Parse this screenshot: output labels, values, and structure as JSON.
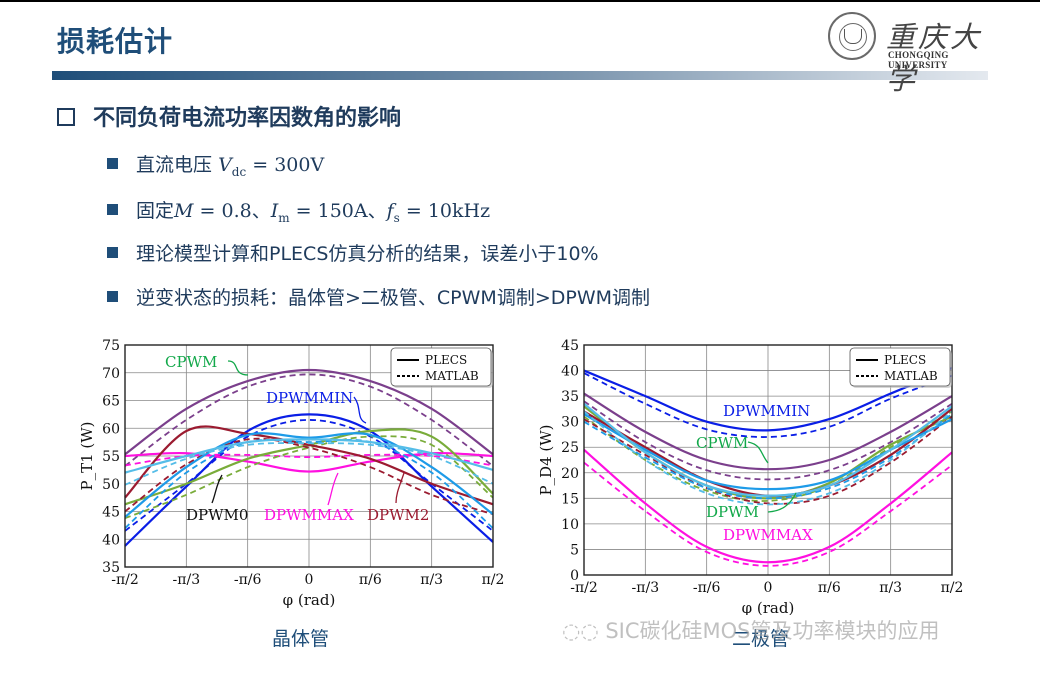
{
  "slide": {
    "title": "损耗估计",
    "logo": {
      "cn": "重庆大学",
      "en": "CHONGQING UNIVERSITY"
    },
    "heading": "不同负荷电流功率因数角的影响",
    "bullets": [
      {
        "prefix": "直流电压",
        "math": "V_dc = 300V"
      },
      {
        "prefix": "固定",
        "math": "M = 0.8、I_m = 150A、f_s = 10kHz"
      },
      {
        "prefix": "",
        "math": "理论模型计算和PLECS仿真分析的结果，误差小于10%"
      },
      {
        "prefix": "",
        "math": "逆变状态的损耗：晶体管>二极管、CPWM调制>DPWM调制"
      }
    ],
    "captions": {
      "left": "晶体管",
      "right": "二极管"
    },
    "watermark": "SIC碳化硅MOS管及功率模块的应用"
  },
  "colors": {
    "title": "#1f4e79",
    "cpwm": "#7b3f8c",
    "dpwmmin": "#0a1ee6",
    "dpwmmax": "#ff10e0",
    "dpwm0": "#79ac3a",
    "dpwm2": "#9b1b30",
    "dpwm1": "#1e9be8",
    "dpwm3": "#55bde8",
    "annot_green": "#12a84a"
  },
  "chart_data": [
    {
      "type": "line",
      "title": "晶体管",
      "xlabel": "φ (rad)",
      "ylabel": "P_T1 (W)",
      "x_ticks": [
        "-π/2",
        "-π/3",
        "-π/6",
        "0",
        "π/6",
        "π/3",
        "π/2"
      ],
      "y_ticks": [
        35,
        40,
        45,
        50,
        55,
        60,
        65,
        70,
        75
      ],
      "ylim": [
        35,
        75
      ],
      "grid": true,
      "legend": [
        "PLECS",
        "MATLAB"
      ],
      "legend_position": "upper right",
      "annotations": [
        "CPWM",
        "DPWMMIN",
        "DPWM0",
        "DPWMMAX",
        "DPWM2"
      ],
      "x": [
        -1.5708,
        -1.0472,
        -0.5236,
        0,
        0.5236,
        1.0472,
        1.5708
      ],
      "series": [
        {
          "name": "CPWM PLECS",
          "style": "solid",
          "values": [
            55.3,
            63.5,
            68.5,
            70.5,
            68.5,
            63.5,
            55.3
          ]
        },
        {
          "name": "CPWM MATLAB",
          "style": "dashed",
          "values": [
            53.2,
            61.5,
            67.5,
            69.7,
            67.5,
            61.5,
            53.2
          ]
        },
        {
          "name": "DPWMMIN PLECS",
          "style": "solid",
          "values": [
            38.8,
            49.5,
            59.5,
            62.5,
            59.5,
            49.5,
            39.5
          ]
        },
        {
          "name": "DPWMMIN MATLAB",
          "style": "dashed",
          "values": [
            41.5,
            50.0,
            58.5,
            61.5,
            58.5,
            50.0,
            41.5
          ]
        },
        {
          "name": "DPWMMAX PLECS",
          "style": "solid",
          "values": [
            55.0,
            55.5,
            54.0,
            52.2,
            54.0,
            55.5,
            55.0
          ]
        },
        {
          "name": "DPWMMAX MATLAB",
          "style": "dashed",
          "values": [
            53.3,
            55.0,
            55.2,
            54.8,
            55.2,
            55.0,
            53.3
          ]
        },
        {
          "name": "DPWM0 PLECS",
          "style": "solid",
          "values": [
            46.3,
            50.0,
            54.5,
            57.0,
            59.5,
            58.5,
            48.2
          ]
        },
        {
          "name": "DPWM0 MATLAB",
          "style": "dashed",
          "values": [
            43.8,
            48.0,
            53.0,
            56.5,
            58.5,
            57.0,
            47.5
          ]
        },
        {
          "name": "DPWM2 PLECS",
          "style": "solid",
          "values": [
            47.5,
            59.5,
            59.0,
            57.0,
            54.5,
            50.0,
            46.3
          ]
        },
        {
          "name": "DPWM2 MATLAB",
          "style": "dashed",
          "values": [
            45.0,
            53.5,
            58.0,
            56.5,
            53.0,
            48.0,
            44.5
          ]
        },
        {
          "name": "DPWM1 PLECS",
          "style": "solid",
          "values": [
            44.0,
            53.0,
            58.8,
            58.3,
            58.8,
            53.0,
            44.5
          ]
        },
        {
          "name": "DPWM1 MATLAB",
          "style": "dashed",
          "values": [
            42.0,
            52.0,
            57.5,
            57.5,
            57.5,
            52.0,
            42.0
          ]
        },
        {
          "name": "DPWM3 PLECS",
          "style": "solid",
          "values": [
            52.0,
            55.0,
            57.5,
            58.0,
            57.5,
            55.5,
            52.5
          ]
        },
        {
          "name": "DPWM3 MATLAB",
          "style": "dashed",
          "values": [
            49.8,
            54.5,
            57.0,
            57.3,
            57.0,
            55.0,
            50.0
          ]
        }
      ]
    },
    {
      "type": "line",
      "title": "二极管",
      "xlabel": "φ (rad)",
      "ylabel": "P_D4 (W)",
      "x_ticks": [
        "-π/2",
        "-π/3",
        "-π/6",
        "0",
        "π/6",
        "π/3",
        "π/2"
      ],
      "y_ticks": [
        0,
        5,
        10,
        15,
        20,
        25,
        30,
        35,
        40,
        45
      ],
      "ylim": [
        0,
        45
      ],
      "grid": true,
      "legend": [
        "PLECS",
        "MATLAB"
      ],
      "legend_position": "upper right",
      "annotations": [
        "DPWMMIN",
        "CPWM",
        "DPWM",
        "DPWMMAX"
      ],
      "x": [
        -1.5708,
        -1.0472,
        -0.5236,
        0,
        0.5236,
        1.0472,
        1.5708
      ],
      "series": [
        {
          "name": "DPWMMIN PLECS",
          "style": "solid",
          "values": [
            40.0,
            35.0,
            30.0,
            28.3,
            30.5,
            35.5,
            40.5
          ]
        },
        {
          "name": "DPWMMIN MATLAB",
          "style": "dashed",
          "values": [
            39.5,
            33.5,
            28.5,
            27.0,
            29.0,
            34.5,
            39.0
          ]
        },
        {
          "name": "CPWM PLECS",
          "style": "solid",
          "values": [
            35.5,
            28.0,
            22.5,
            20.7,
            22.5,
            28.0,
            35.0
          ]
        },
        {
          "name": "CPWM MATLAB",
          "style": "dashed",
          "values": [
            34.0,
            26.0,
            20.5,
            18.7,
            20.5,
            26.0,
            33.5
          ]
        },
        {
          "name": "DPWMMAX PLECS",
          "style": "solid",
          "values": [
            24.5,
            14.0,
            5.5,
            2.5,
            5.5,
            14.0,
            24.0
          ]
        },
        {
          "name": "DPWMMAX MATLAB",
          "style": "dashed",
          "values": [
            22.0,
            12.5,
            4.5,
            1.8,
            4.5,
            12.5,
            21.5
          ]
        },
        {
          "name": "DPWM0 PLECS",
          "style": "solid",
          "values": [
            33.0,
            24.0,
            17.5,
            15.0,
            18.0,
            25.5,
            31.0
          ]
        },
        {
          "name": "DPWM0 MATLAB",
          "style": "dashed",
          "values": [
            31.0,
            22.5,
            16.5,
            14.5,
            17.5,
            25.0,
            32.0
          ]
        },
        {
          "name": "DPWM2 PLECS",
          "style": "solid",
          "values": [
            32.0,
            25.0,
            18.5,
            15.5,
            17.5,
            23.5,
            32.5
          ]
        },
        {
          "name": "DPWM2 MATLAB",
          "style": "dashed",
          "values": [
            30.5,
            23.5,
            17.0,
            14.0,
            15.5,
            22.0,
            31.0
          ]
        },
        {
          "name": "DPWM1 PLECS",
          "style": "solid",
          "values": [
            31.5,
            24.5,
            18.5,
            16.8,
            18.5,
            24.5,
            30.5
          ]
        },
        {
          "name": "DPWM1 MATLAB",
          "style": "dashed",
          "values": [
            30.0,
            23.0,
            17.0,
            15.0,
            17.0,
            23.0,
            31.5
          ]
        },
        {
          "name": "DPWM3 PLECS",
          "style": "solid",
          "values": [
            33.5,
            24.0,
            17.5,
            15.5,
            17.5,
            24.5,
            33.0
          ]
        },
        {
          "name": "DPWM3 MATLAB",
          "style": "dashed",
          "values": [
            32.0,
            22.5,
            16.0,
            13.8,
            16.0,
            22.5,
            32.0
          ]
        }
      ]
    }
  ]
}
